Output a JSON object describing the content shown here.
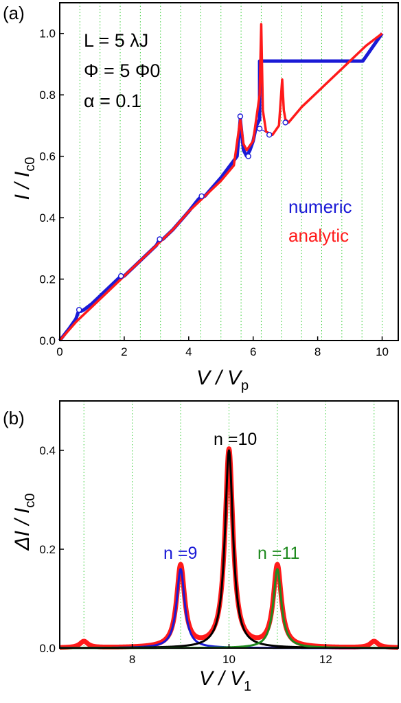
{
  "panel_a": {
    "label": "(a)",
    "annotations": [
      "L = 5 λJ",
      "Φ = 5 Φ0",
      "α = 0.1"
    ],
    "legend": [
      {
        "text": "numeric",
        "color": "#1a1ad6"
      },
      {
        "text": "analytic",
        "color": "#ff1a1a"
      }
    ]
  },
  "panel_b": {
    "label": "(b)",
    "peak_labels": [
      {
        "text": "n =9",
        "color": "#1a1ad6"
      },
      {
        "text": "n =10",
        "color": "#000000"
      },
      {
        "text": "n =11",
        "color": "#1f8a1f"
      }
    ]
  },
  "colors": {
    "numeric": "#1a1ad6",
    "analytic": "#ff1a1a",
    "grid": "#33cc33",
    "black": "#000000",
    "green": "#1f8a1f"
  },
  "chart_data": [
    {
      "type": "line",
      "panel": "(a)",
      "xlabel": "V / Vp",
      "ylabel": "I / Ic0",
      "xlim": [
        0,
        10.5
      ],
      "ylim": [
        0,
        1.1
      ],
      "xticks": [
        0,
        2,
        4,
        6,
        8,
        10
      ],
      "yticks": [
        0.0,
        0.2,
        0.4,
        0.6,
        0.8,
        1.0
      ],
      "grid": "vertical dotted lines every 0.625",
      "grid_x": [
        0.625,
        1.25,
        1.875,
        2.5,
        3.125,
        3.75,
        4.375,
        5.0,
        5.625,
        6.25,
        6.875,
        7.5,
        8.125,
        8.75,
        9.375,
        10.0
      ],
      "series": [
        {
          "name": "numeric",
          "x": [
            0.0,
            0.3,
            0.5,
            0.6,
            0.65,
            0.75,
            1.0,
            1.5,
            1.8,
            1.9,
            2.0,
            2.5,
            3.0,
            3.1,
            3.2,
            3.5,
            4.0,
            4.3,
            4.4,
            4.5,
            5.0,
            5.5,
            5.6,
            5.7,
            5.8,
            5.9,
            6.0,
            6.1,
            6.2,
            6.2,
            9.4,
            10.0
          ],
          "y": [
            0.0,
            0.04,
            0.07,
            0.1,
            0.095,
            0.1,
            0.12,
            0.17,
            0.2,
            0.21,
            0.21,
            0.26,
            0.31,
            0.33,
            0.33,
            0.36,
            0.42,
            0.46,
            0.47,
            0.47,
            0.53,
            0.6,
            0.72,
            0.62,
            0.6,
            0.62,
            0.65,
            0.7,
            0.72,
            0.91,
            0.91,
            1.0
          ]
        },
        {
          "name": "analytic",
          "x": [
            0.0,
            0.5,
            1.0,
            1.5,
            2.0,
            2.5,
            3.0,
            3.5,
            4.0,
            4.5,
            5.0,
            5.4,
            5.6,
            5.7,
            5.8,
            6.0,
            6.2,
            6.25,
            6.3,
            6.4,
            6.6,
            6.8,
            6.9,
            6.95,
            7.0,
            7.1,
            7.5,
            8.0,
            8.2,
            8.5,
            9.0,
            9.5,
            10.0
          ],
          "y": [
            0.0,
            0.06,
            0.11,
            0.16,
            0.21,
            0.26,
            0.31,
            0.36,
            0.42,
            0.47,
            0.52,
            0.57,
            0.72,
            0.64,
            0.62,
            0.65,
            0.8,
            1.03,
            0.75,
            0.68,
            0.67,
            0.7,
            0.85,
            0.75,
            0.72,
            0.71,
            0.76,
            0.81,
            0.83,
            0.86,
            0.91,
            0.96,
            1.0
          ]
        }
      ],
      "markers": {
        "series": "numeric",
        "x": [
          0.6,
          1.9,
          3.1,
          4.4,
          5.6,
          5.85,
          6.2,
          6.5,
          7.0
        ],
        "y": [
          0.1,
          0.21,
          0.33,
          0.47,
          0.73,
          0.6,
          0.69,
          0.67,
          0.71
        ]
      }
    },
    {
      "type": "line",
      "panel": "(b)",
      "xlabel": "V / V1",
      "ylabel": "ΔI / Ic0",
      "xlim": [
        6.5,
        13.5
      ],
      "ylim": [
        0,
        0.5
      ],
      "xticks": [
        8,
        10,
        12
      ],
      "yticks": [
        0.0,
        0.2,
        0.4
      ],
      "grid": "vertical dotted lines at integers",
      "grid_x": [
        7,
        8,
        9,
        10,
        11,
        12,
        13
      ],
      "series": [
        {
          "name": "analytic total",
          "peaks": [
            {
              "center": 7,
              "height": 0.013
            },
            {
              "center": 9,
              "height": 0.165
            },
            {
              "center": 10,
              "height": 0.4
            },
            {
              "center": 11,
              "height": 0.165
            },
            {
              "center": 13,
              "height": 0.013
            }
          ],
          "width": 0.1
        },
        {
          "name": "n=9",
          "peaks": [
            {
              "center": 9,
              "height": 0.16
            }
          ],
          "width": 0.1
        },
        {
          "name": "n=10",
          "peaks": [
            {
              "center": 10,
              "height": 0.4
            }
          ],
          "width": 0.1
        },
        {
          "name": "n=11",
          "peaks": [
            {
              "center": 11,
              "height": 0.16
            }
          ],
          "width": 0.1
        }
      ]
    }
  ]
}
